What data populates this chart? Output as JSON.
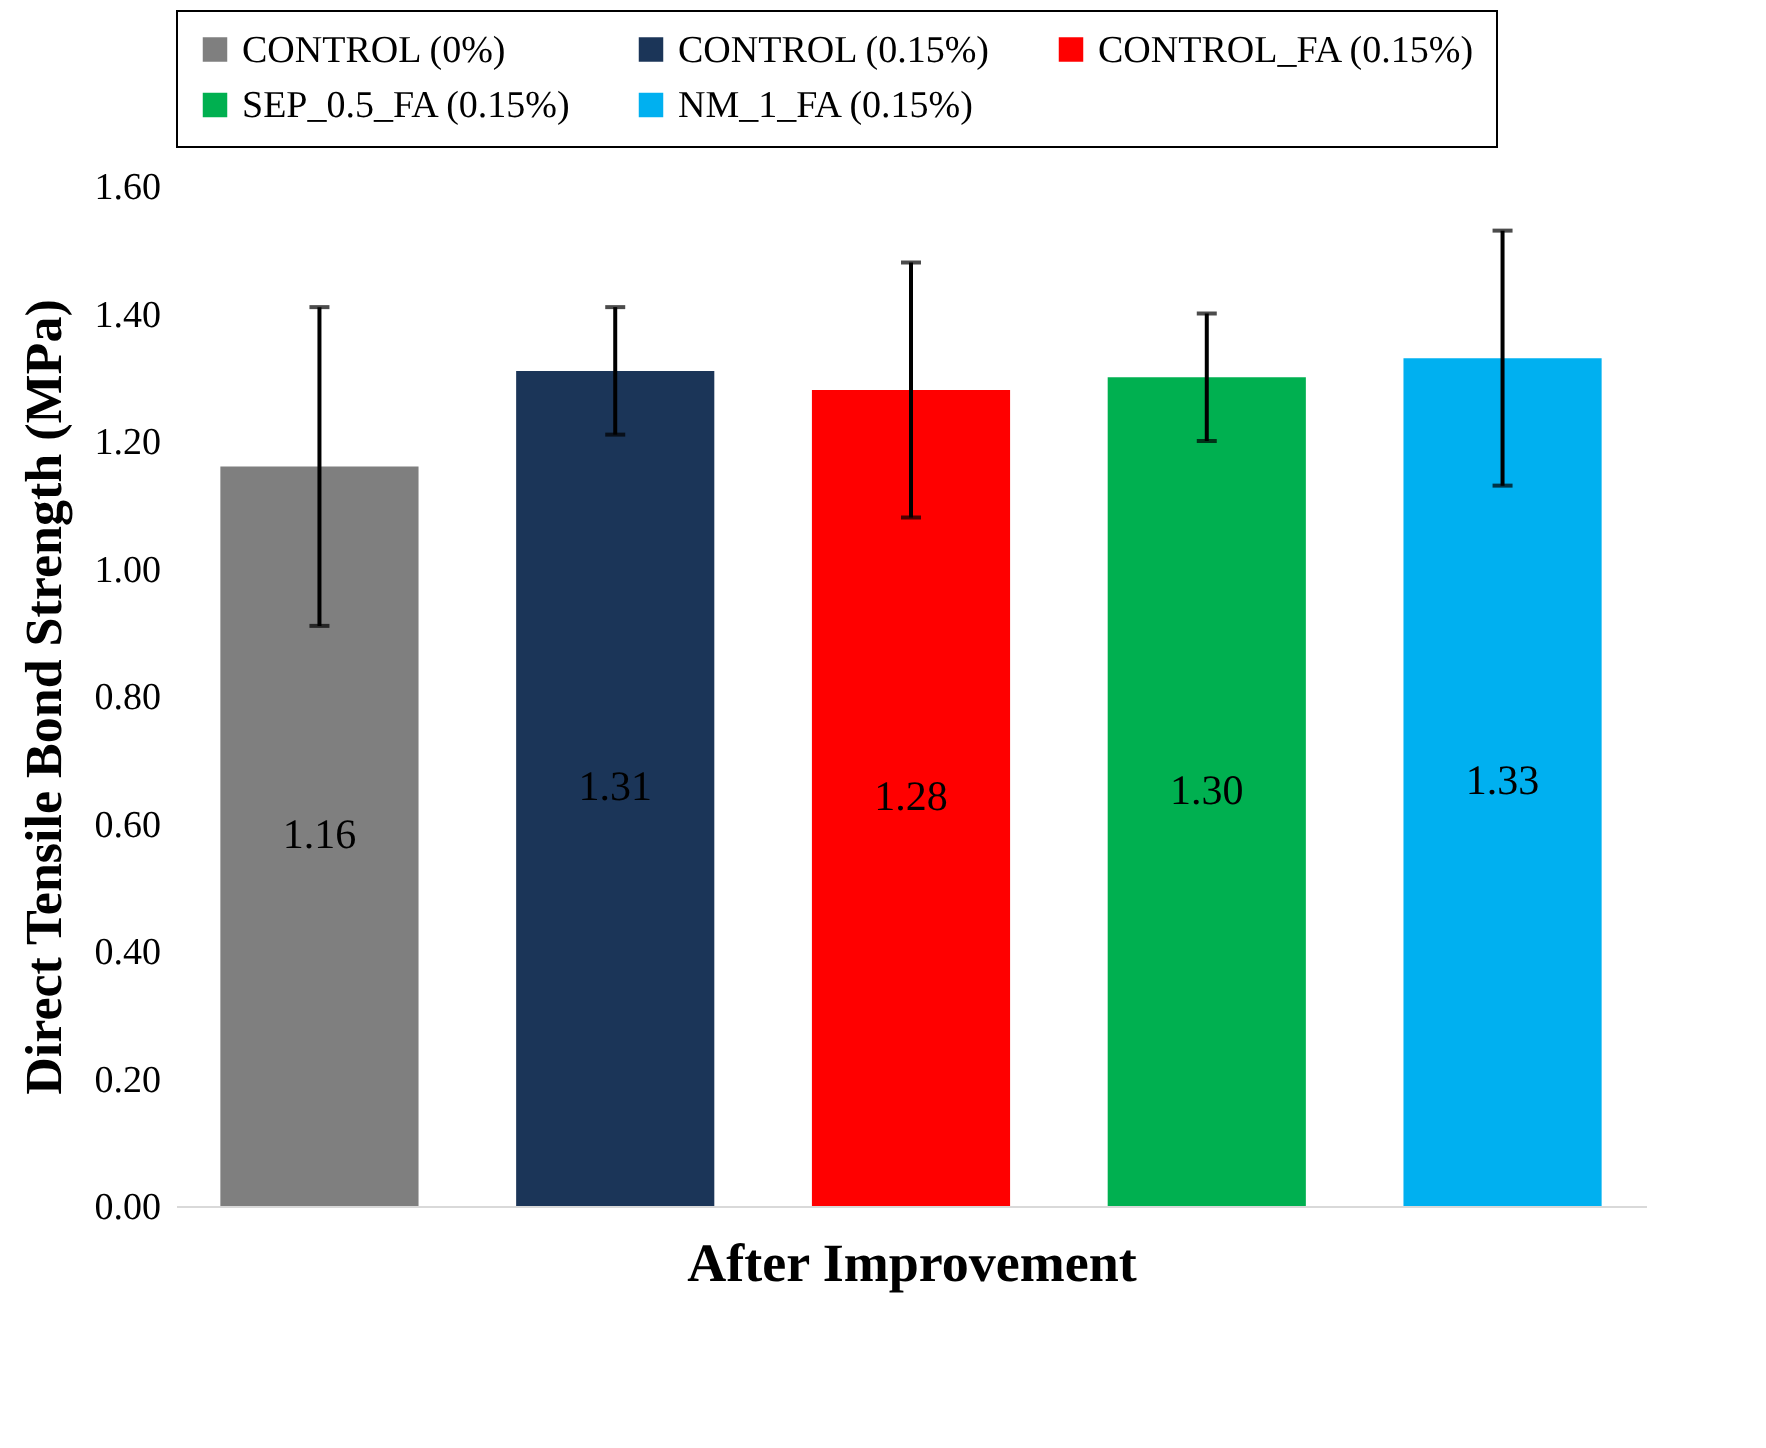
{
  "chart_data": {
    "type": "bar",
    "xlabel": "After Improvement",
    "ylabel": "Direct Tensile Bond Strength (MPa)",
    "categories": [
      null
    ],
    "series": [
      {
        "name": "CONTROL (0%)",
        "color": "#7f7f7f",
        "values": [
          1.16
        ],
        "errors": [
          0.25
        ],
        "value_labels": [
          "1.16"
        ]
      },
      {
        "name": "CONTROL (0.15%)",
        "color": "#1b3558",
        "values": [
          1.31
        ],
        "errors": [
          0.1
        ],
        "value_labels": [
          "1.31"
        ]
      },
      {
        "name": "CONTROL_FA (0.15%)",
        "color": "#ff0000",
        "values": [
          1.28
        ],
        "errors": [
          0.2
        ],
        "value_labels": [
          "1.28"
        ]
      },
      {
        "name": "SEP_0.5_FA (0.15%)",
        "color": "#00b050",
        "values": [
          1.3
        ],
        "errors": [
          0.1
        ],
        "value_labels": [
          "1.30"
        ]
      },
      {
        "name": "NM_1_FA (0.15%)",
        "color": "#00b0f0",
        "values": [
          1.33
        ],
        "errors": [
          0.2
        ],
        "value_labels": [
          "1.33"
        ]
      }
    ],
    "ylim": [
      0,
      1.6
    ],
    "yticks": [
      {
        "value": 0,
        "label": "0.00"
      },
      {
        "value": 0.2,
        "label": "0.20"
      },
      {
        "value": 0.4,
        "label": "0.40"
      },
      {
        "value": 0.6,
        "label": "0.60"
      },
      {
        "value": 0.8,
        "label": "0.80"
      },
      {
        "value": 1.0,
        "label": "1.00"
      },
      {
        "value": 1.2,
        "label": "1.20"
      },
      {
        "value": 1.4,
        "label": "1.40"
      },
      {
        "value": 1.6,
        "label": "1.60"
      }
    ],
    "legend": "top",
    "grid": false
  }
}
